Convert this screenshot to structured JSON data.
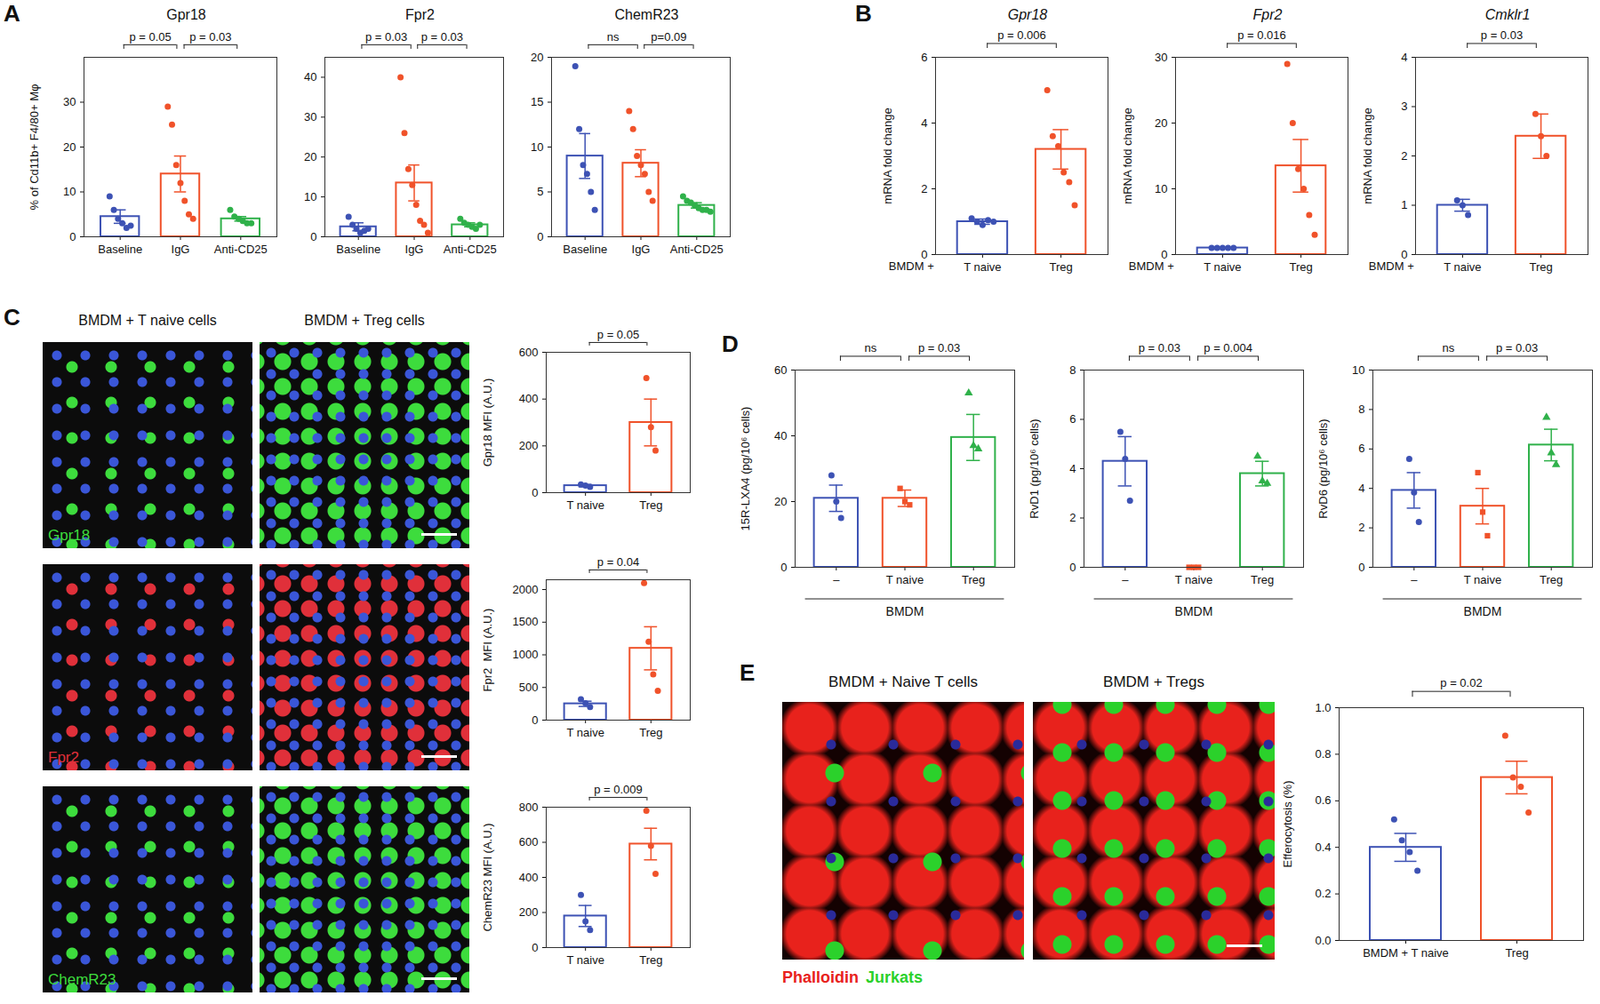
{
  "panels": [
    "A",
    "B",
    "C",
    "D",
    "E"
  ],
  "chart_data": [
    {
      "panel": "A",
      "type": "bar",
      "title": "Gpr18",
      "ylabel": "% of Cd11b+ F4/80+ Mφ",
      "categories": [
        "Baseline",
        "IgG",
        "Anti-CD25"
      ],
      "values": [
        4.5,
        14,
        4
      ],
      "errors": [
        1.5,
        4,
        0.5
      ],
      "points": [
        [
          9,
          6,
          4,
          3,
          2,
          2.5
        ],
        [
          29,
          25,
          16,
          12,
          8,
          5,
          4
        ],
        [
          6,
          4.5,
          4,
          3.5,
          3,
          3
        ]
      ],
      "colors": [
        "#3d52b4",
        "#f0522a",
        "#2fb14a"
      ],
      "marker": "circle",
      "ylim": [
        0,
        40
      ],
      "yticks": [
        0,
        10,
        20,
        30
      ],
      "annotations": [
        {
          "from": 0,
          "to": 1,
          "label": "p = 0.05"
        },
        {
          "from": 1,
          "to": 2,
          "label": "p = 0.03"
        }
      ]
    },
    {
      "panel": "A",
      "type": "bar",
      "title": "Fpr2",
      "categories": [
        "Baseline",
        "IgG",
        "Anti-CD25"
      ],
      "values": [
        2.5,
        13.5,
        3
      ],
      "errors": [
        1,
        4.5,
        0.5
      ],
      "points": [
        [
          5,
          3,
          2,
          1,
          1.5,
          2
        ],
        [
          40,
          26,
          17,
          13,
          8,
          4,
          3,
          1
        ],
        [
          4.5,
          3.5,
          3,
          2.5,
          2,
          3
        ]
      ],
      "colors": [
        "#3d52b4",
        "#f0522a",
        "#2fb14a"
      ],
      "marker": "circle",
      "ylim": [
        0,
        45
      ],
      "yticks": [
        0,
        10,
        20,
        30,
        40
      ],
      "annotations": [
        {
          "from": 0,
          "to": 1,
          "label": "p = 0.03"
        },
        {
          "from": 1,
          "to": 2,
          "label": "p = 0.03"
        }
      ]
    },
    {
      "panel": "A",
      "type": "bar",
      "title": "ChemR23",
      "categories": [
        "Baseline",
        "IgG",
        "Anti-CD25"
      ],
      "values": [
        9,
        8.2,
        3.5
      ],
      "errors": [
        2.5,
        1.5,
        0.3
      ],
      "points": [
        [
          19,
          12,
          8,
          7,
          5,
          3
        ],
        [
          14,
          12,
          9,
          8,
          7,
          5,
          4
        ],
        [
          4.5,
          4,
          3.8,
          3.5,
          3.2,
          3,
          3,
          2.8
        ]
      ],
      "colors": [
        "#3d52b4",
        "#f0522a",
        "#2fb14a"
      ],
      "marker": "circle",
      "ylim": [
        0,
        20
      ],
      "yticks": [
        0,
        5,
        10,
        15,
        20
      ],
      "annotations": [
        {
          "from": 0,
          "to": 1,
          "label": "ns"
        },
        {
          "from": 1,
          "to": 2,
          "label": "p=0.09"
        }
      ]
    },
    {
      "panel": "B",
      "type": "bar",
      "title": "Gpr18",
      "ylabel": "mRNA fold change",
      "x_prefix": "BMDM +",
      "categories": [
        "T naive",
        "Treg"
      ],
      "values": [
        1.0,
        3.2
      ],
      "errors": [
        0.08,
        0.6
      ],
      "points": [
        [
          1.1,
          1.0,
          0.9,
          1.05,
          1.0
        ],
        [
          5.0,
          3.6,
          3.3,
          2.5,
          2.2,
          1.5
        ]
      ],
      "colors": [
        "#3d52b4",
        "#f0522a"
      ],
      "marker": "circle",
      "ylim": [
        0,
        6
      ],
      "yticks": [
        0,
        2,
        4,
        6
      ],
      "annotations": [
        {
          "from": 0,
          "to": 1,
          "label": "p = 0.006"
        }
      ]
    },
    {
      "panel": "B",
      "type": "bar",
      "title": "Fpr2",
      "ylabel": "mRNA fold change",
      "x_prefix": "BMDM +",
      "categories": [
        "T naive",
        "Treg"
      ],
      "values": [
        1,
        13.5
      ],
      "errors": [
        0.1,
        4
      ],
      "points": [
        [
          1,
          1,
          1,
          1,
          1
        ],
        [
          29,
          20,
          13,
          10,
          6,
          3
        ]
      ],
      "colors": [
        "#3d52b4",
        "#f0522a"
      ],
      "marker": "circle",
      "ylim": [
        0,
        30
      ],
      "yticks": [
        0,
        10,
        20,
        30
      ],
      "annotations": [
        {
          "from": 0,
          "to": 1,
          "label": "p = 0.016"
        }
      ]
    },
    {
      "panel": "B",
      "type": "bar",
      "title": "Cmklr1",
      "ylabel": "mRNA fold change",
      "x_prefix": "BMDM +",
      "categories": [
        "T naive",
        "Treg"
      ],
      "values": [
        1,
        2.4
      ],
      "errors": [
        0.12,
        0.45
      ],
      "points": [
        [
          1.1,
          1.0,
          0.8
        ],
        [
          2.85,
          2.4,
          2.0
        ]
      ],
      "colors": [
        "#3d52b4",
        "#f0522a"
      ],
      "marker": "circle",
      "ylim": [
        0,
        4
      ],
      "yticks": [
        0,
        1,
        2,
        3,
        4
      ],
      "annotations": [
        {
          "from": 0,
          "to": 1,
          "label": "p = 0.03"
        }
      ]
    },
    {
      "panel": "C",
      "type": "bar",
      "ylabel": "Gpr18 MFI (A.U.)",
      "categories": [
        "T naive",
        "Treg"
      ],
      "values": [
        30,
        300
      ],
      "errors": [
        5,
        100
      ],
      "points": [
        [
          35,
          30,
          25
        ],
        [
          490,
          280,
          180
        ]
      ],
      "colors": [
        "#3d52b4",
        "#f0522a"
      ],
      "marker": "circle",
      "ylim": [
        0,
        600
      ],
      "yticks": [
        0,
        200,
        400,
        600
      ],
      "annotations": [
        {
          "from": 0,
          "to": 1,
          "label": "p = 0.05"
        }
      ]
    },
    {
      "panel": "C",
      "type": "bar",
      "ylabel": "Fpr2  MFI (A.U.)",
      "categories": [
        "T naive",
        "Treg"
      ],
      "values": [
        250,
        1100
      ],
      "errors": [
        40,
        330
      ],
      "points": [
        [
          320,
          260,
          200
        ],
        [
          2100,
          1200,
          700,
          450
        ]
      ],
      "colors": [
        "#3d52b4",
        "#f0522a"
      ],
      "marker": "circle",
      "ylim": [
        0,
        2150
      ],
      "yticks": [
        0,
        500,
        1000,
        1500,
        2000
      ],
      "annotations": [
        {
          "from": 0,
          "to": 1,
          "label": "p = 0.04"
        }
      ]
    },
    {
      "panel": "C",
      "type": "bar",
      "ylabel": "ChemR23 MFI (A.U.)",
      "categories": [
        "T naive",
        "Treg"
      ],
      "values": [
        180,
        590
      ],
      "errors": [
        60,
        90
      ],
      "points": [
        [
          300,
          150,
          100
        ],
        [
          780,
          580,
          420
        ]
      ],
      "colors": [
        "#3d52b4",
        "#f0522a"
      ],
      "marker": "circle",
      "ylim": [
        0,
        800
      ],
      "yticks": [
        0,
        200,
        400,
        600,
        800
      ],
      "annotations": [
        {
          "from": 0,
          "to": 1,
          "label": "p = 0.009"
        }
      ]
    },
    {
      "panel": "D",
      "type": "bar",
      "ylabel": "15R-LXA4 (pg/10⁶ cells)",
      "group_label": "BMDM",
      "categories": [
        "–",
        "T naive",
        "Treg"
      ],
      "values": [
        21,
        21,
        39.5
      ],
      "errors": [
        4,
        2.5,
        7
      ],
      "points": [
        [
          28,
          20,
          15
        ],
        [
          24,
          20,
          19
        ],
        [
          53,
          37,
          36
        ]
      ],
      "colors": [
        "#3d52b4",
        "#f0522a",
        "#2fb14a"
      ],
      "markers": [
        "circle",
        "square",
        "triangle"
      ],
      "ylim": [
        0,
        60
      ],
      "yticks": [
        0,
        20,
        40,
        60
      ],
      "annotations": [
        {
          "from": 0,
          "to": 1,
          "label": "ns"
        },
        {
          "from": 1,
          "to": 2,
          "label": "p = 0.03"
        }
      ]
    },
    {
      "panel": "D",
      "type": "bar",
      "ylabel": "RvD1 (pg/10⁶ cells)",
      "group_label": "BMDM",
      "categories": [
        "–",
        "T naive",
        "Treg"
      ],
      "values": [
        4.3,
        0,
        3.8
      ],
      "errors": [
        1,
        0,
        0.5
      ],
      "points": [
        [
          5.5,
          4.4,
          2.7
        ],
        [
          0,
          0,
          0
        ],
        [
          4.5,
          3.5,
          3.4
        ]
      ],
      "colors": [
        "#3d52b4",
        "#f0522a",
        "#2fb14a"
      ],
      "markers": [
        "circle",
        "square",
        "triangle"
      ],
      "ylim": [
        0,
        8
      ],
      "yticks": [
        0,
        2,
        4,
        6,
        8
      ],
      "annotations": [
        {
          "from": 0,
          "to": 1,
          "label": "p = 0.03"
        },
        {
          "from": 1,
          "to": 2,
          "label": "p = 0.004"
        }
      ]
    },
    {
      "panel": "D",
      "type": "bar",
      "ylabel": "RvD6 (pg/10⁶ cells)",
      "group_label": "BMDM",
      "categories": [
        "–",
        "T naive",
        "Treg"
      ],
      "values": [
        3.9,
        3.1,
        6.2
      ],
      "errors": [
        0.9,
        0.9,
        0.8
      ],
      "points": [
        [
          5.5,
          3.8,
          2.3
        ],
        [
          4.8,
          2.8,
          1.6
        ],
        [
          7.6,
          5.8,
          5.2
        ]
      ],
      "colors": [
        "#3d52b4",
        "#f0522a",
        "#2fb14a"
      ],
      "markers": [
        "circle",
        "square",
        "triangle"
      ],
      "ylim": [
        0,
        10
      ],
      "yticks": [
        0,
        2,
        4,
        6,
        8,
        10
      ],
      "annotations": [
        {
          "from": 0,
          "to": 1,
          "label": "ns"
        },
        {
          "from": 1,
          "to": 2,
          "label": "p = 0.03"
        }
      ]
    },
    {
      "panel": "E",
      "type": "bar",
      "ylabel": "Efferocytosis (%)",
      "categories": [
        "BMDM + T naive",
        "Treg"
      ],
      "values": [
        0.4,
        0.7
      ],
      "errors": [
        0.06,
        0.07
      ],
      "points": [
        [
          0.52,
          0.43,
          0.38,
          0.3
        ],
        [
          0.88,
          0.7,
          0.66,
          0.55
        ]
      ],
      "colors": [
        "#3d52b4",
        "#f0522a"
      ],
      "marker": "circle",
      "ylim": [
        0,
        1
      ],
      "yticks": [
        {
          "value": 0,
          "label": "0.0"
        },
        0.2,
        0.4,
        0.6,
        0.8,
        {
          "value": 1,
          "label": "1.0"
        }
      ],
      "annotations": [
        {
          "from": 0,
          "to": 1,
          "label": "p = 0.02"
        }
      ]
    }
  ],
  "images": [
    {
      "panel": "C",
      "columns": [
        "BMDM + T naive cells",
        "BMDM + Treg cells"
      ],
      "rows": [
        {
          "label": "Gpr18",
          "color": "#3ddc3d"
        },
        {
          "label": "Fpr2",
          "color": "#e0303a"
        },
        {
          "label": "ChemR23",
          "color": "#3ddc3d"
        }
      ]
    },
    {
      "panel": "E",
      "columns": [
        "BMDM + Naive T cells",
        "BMDM + Tregs"
      ],
      "legend": [
        {
          "label": "Phalloidin",
          "color": "#e8221c"
        },
        {
          "label": "Jurkats",
          "color": "#2bd12b"
        }
      ]
    }
  ]
}
